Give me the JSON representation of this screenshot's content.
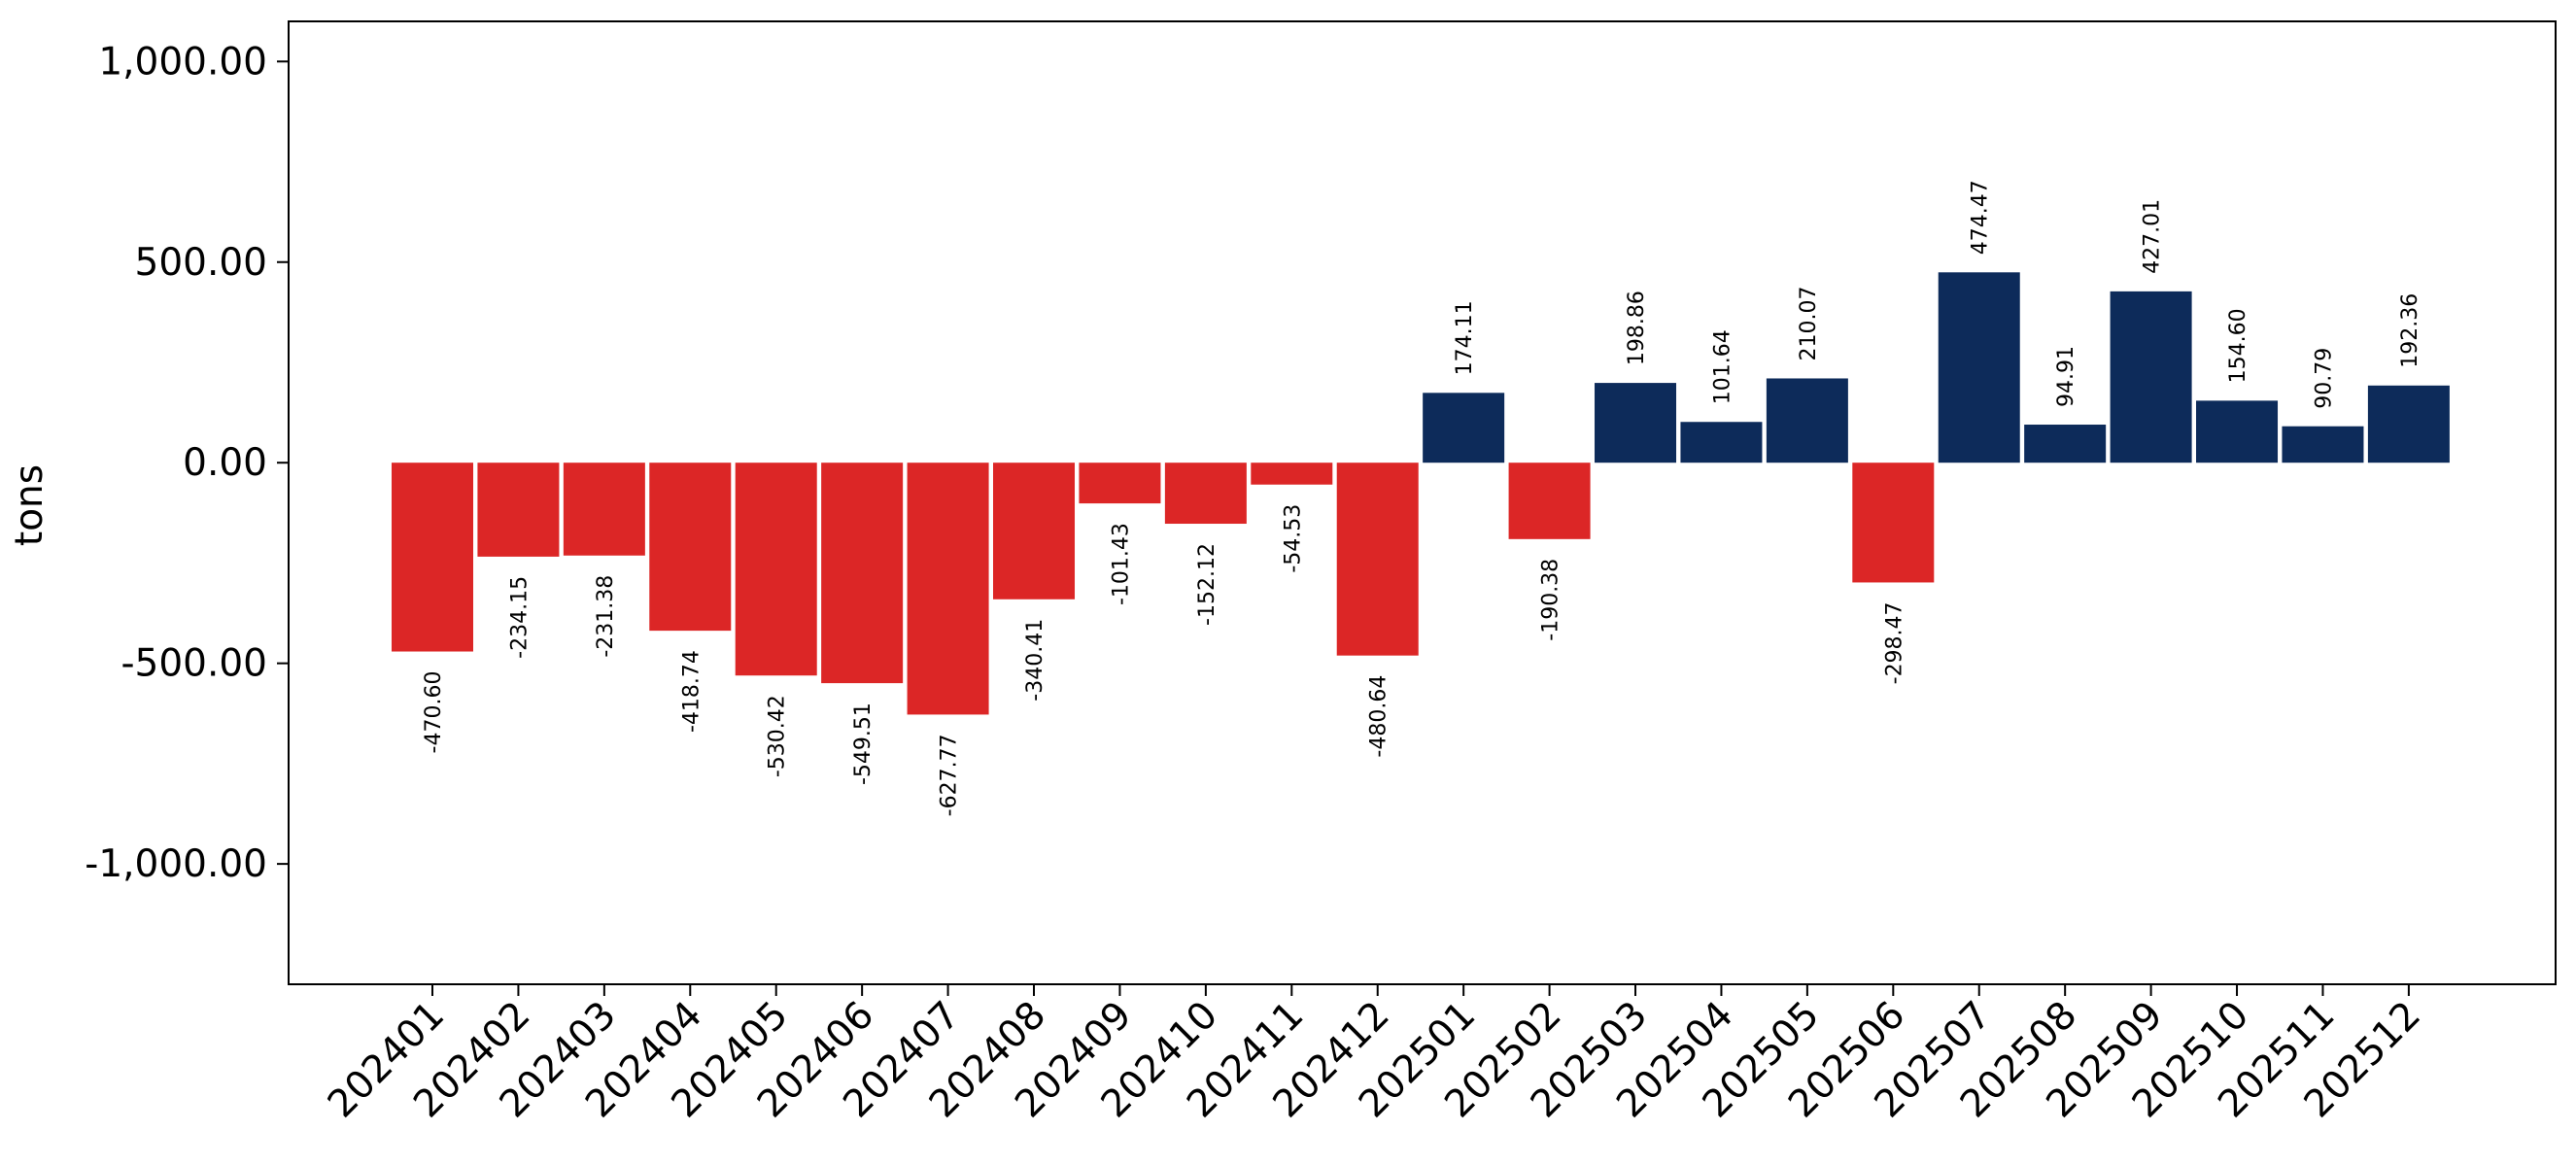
{
  "chart_data": {
    "type": "bar",
    "title": "",
    "xlabel": "",
    "ylabel": "tons",
    "ylim": [
      -1300,
      1100
    ],
    "yticks": [
      1000,
      500,
      0,
      -500,
      -1000
    ],
    "ytick_labels": [
      "1,000.00",
      "500.00",
      "0.00",
      "-500.00",
      "-1,000.00"
    ],
    "grid": false,
    "legend": "none",
    "colors": {
      "positive": "#0d2b5a",
      "negative": "#dc2626"
    },
    "categories": [
      "202401",
      "202402",
      "202403",
      "202404",
      "202405",
      "202406",
      "202407",
      "202408",
      "202409",
      "202410",
      "202411",
      "202412",
      "202501",
      "202502",
      "202503",
      "202504",
      "202505",
      "202506",
      "202507",
      "202508",
      "202509",
      "202510",
      "202511",
      "202512"
    ],
    "values": [
      -470.6,
      -234.15,
      -231.38,
      -418.74,
      -530.42,
      -549.51,
      -627.77,
      -340.41,
      -101.43,
      -152.12,
      -54.53,
      -480.64,
      174.11,
      -190.38,
      198.86,
      101.64,
      210.07,
      -298.47,
      474.47,
      94.91,
      427.01,
      154.6,
      90.79,
      192.36
    ],
    "value_labels": [
      "-470.60",
      "-234.15",
      "-231.38",
      "-418.74",
      "-530.42",
      "-549.51",
      "-627.77",
      "-340.41",
      "-101.43",
      "-152.12",
      "-54.53",
      "-480.64",
      "174.11",
      "-190.38",
      "198.86",
      "101.64",
      "210.07",
      "-298.47",
      "474.47",
      "94.91",
      "427.01",
      "154.60",
      "90.79",
      "192.36"
    ]
  }
}
